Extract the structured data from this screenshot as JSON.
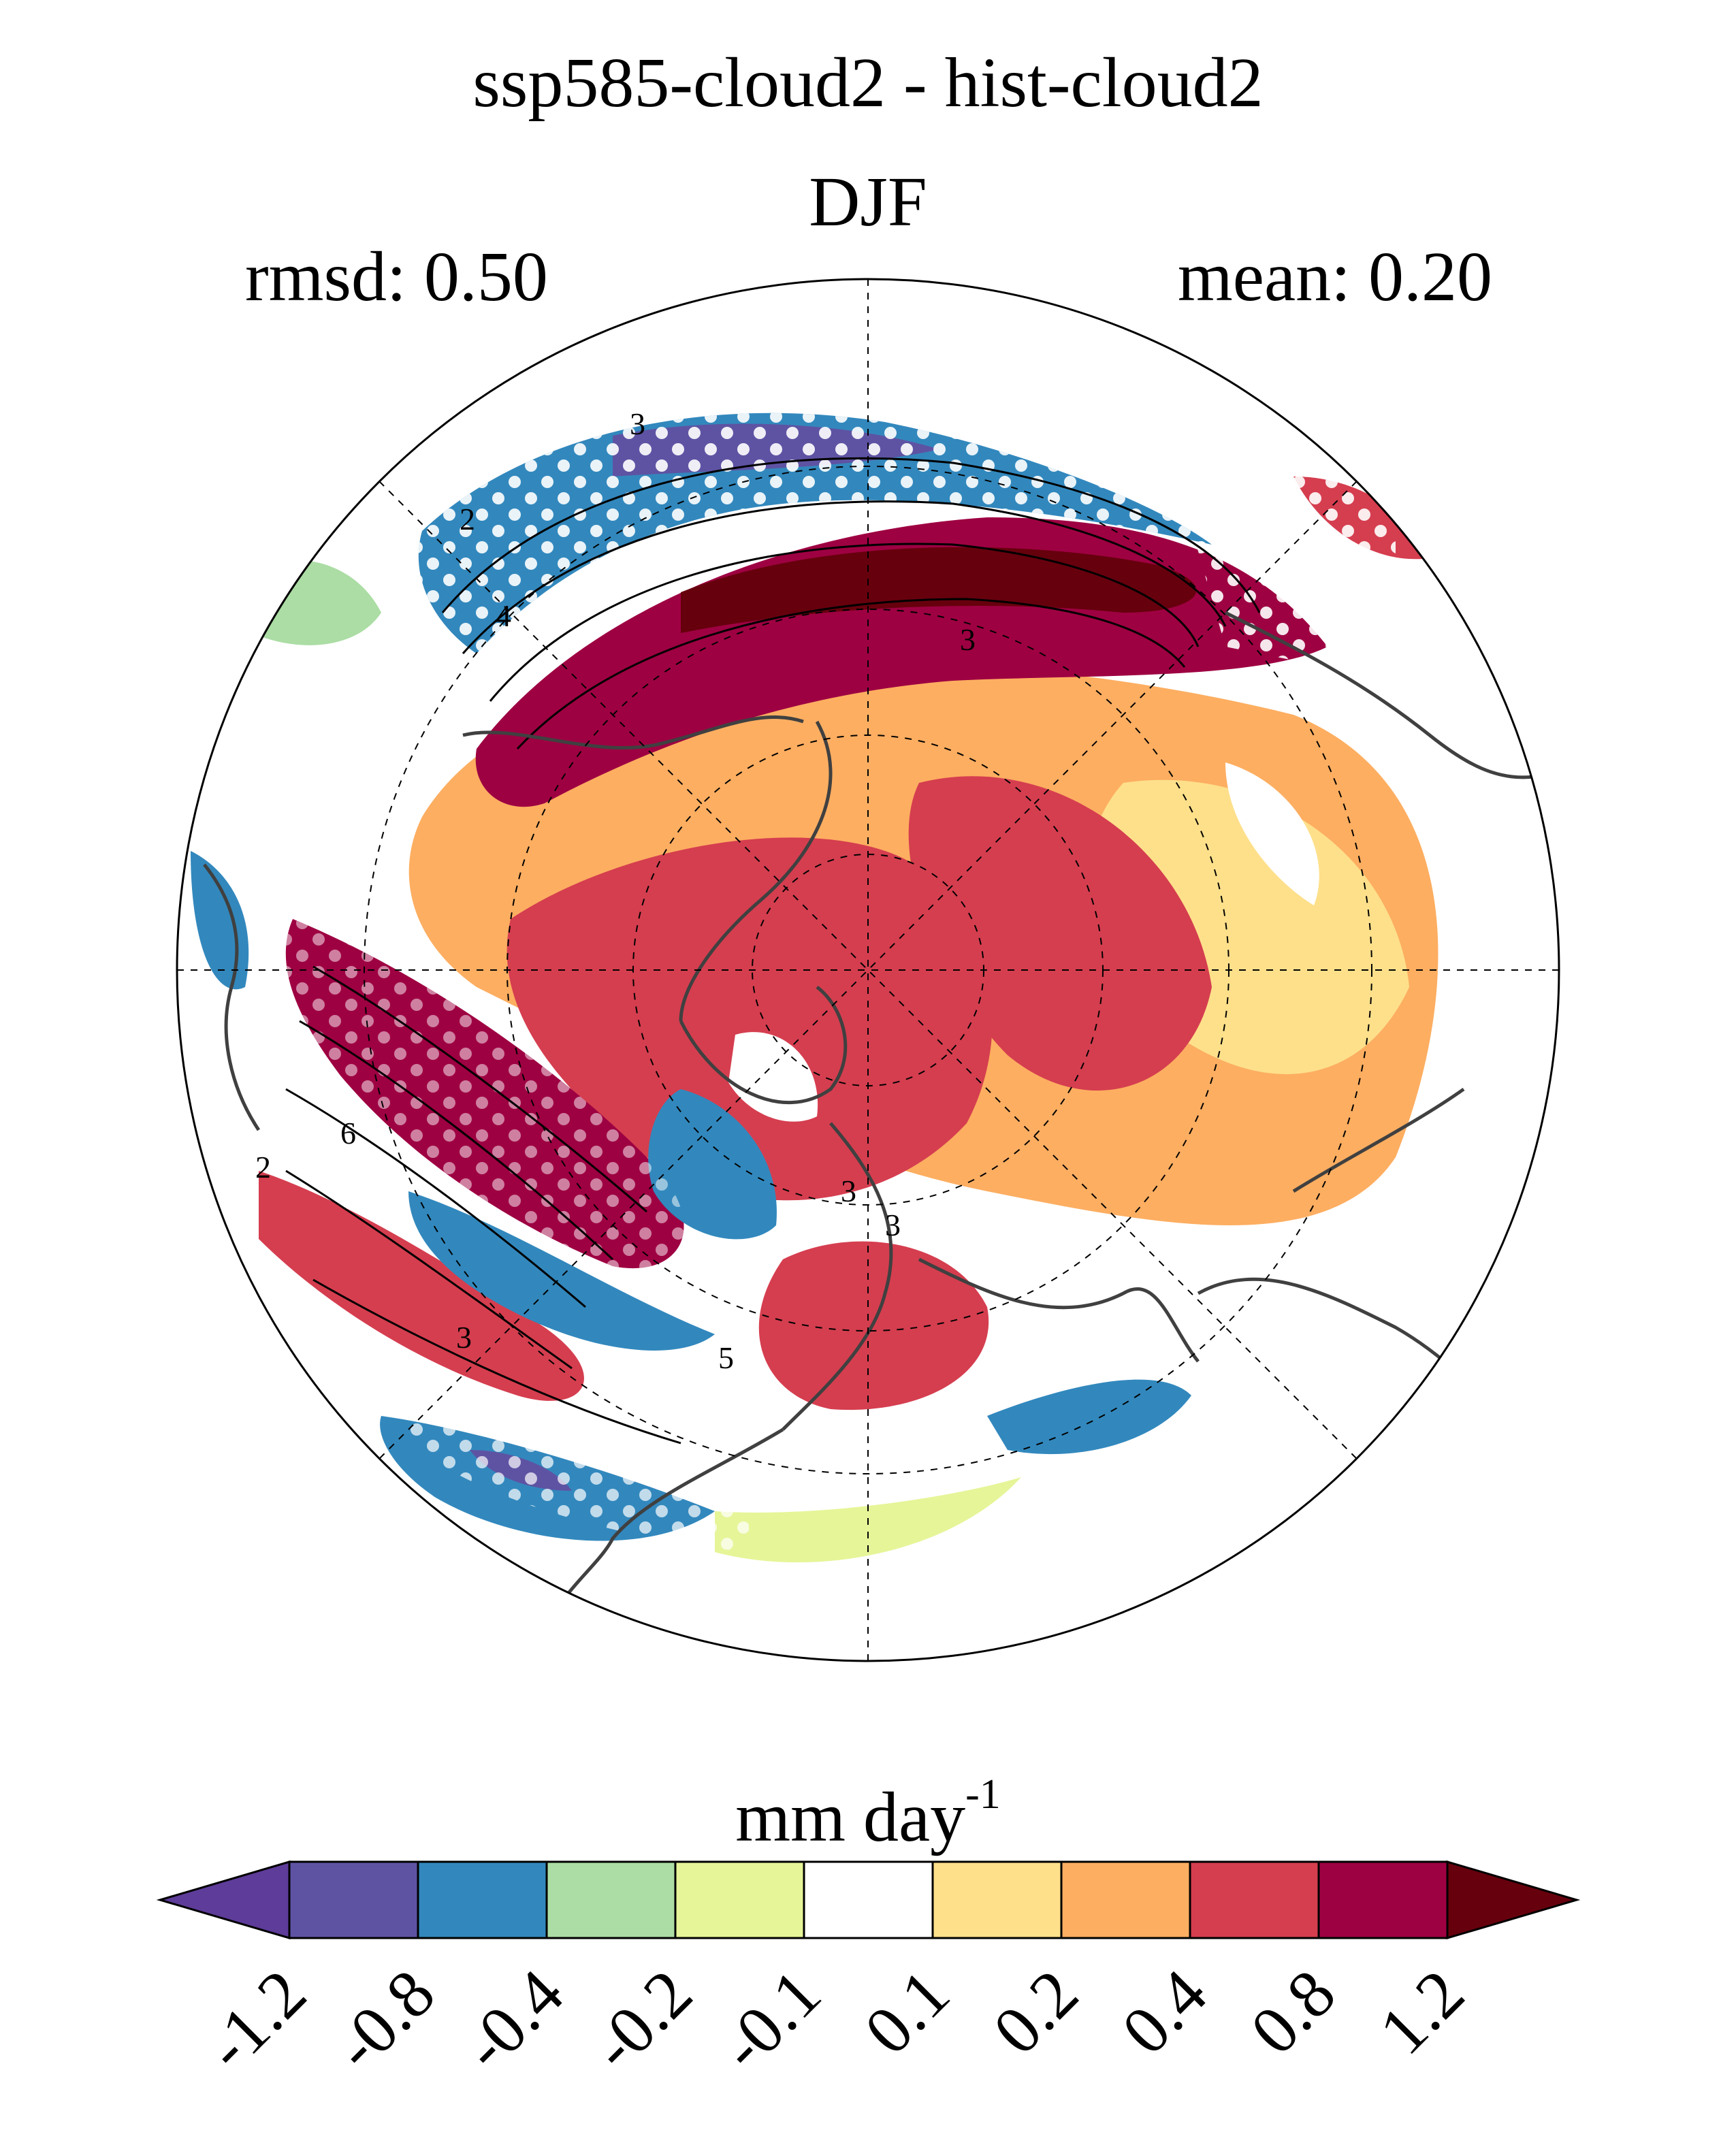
{
  "title": "ssp585-cloud2 - hist-cloud2",
  "season": "DJF",
  "stats": {
    "rmsd": "rmsd: 0.50",
    "mean": "mean: 0.20"
  },
  "units": {
    "base": "mm day",
    "exponent": "-1"
  },
  "colorbar": {
    "levels": [
      "-1.2",
      "-0.8",
      "-0.4",
      "-0.2",
      "-0.1",
      "0.1",
      "0.2",
      "0.4",
      "0.8",
      "1.2"
    ],
    "colors": [
      "#5e3c99",
      "#5e53a3",
      "#3288bd",
      "#abdda4",
      "#e6f598",
      "#ffffff",
      "#fee08b",
      "#fdae61",
      "#d53e4f",
      "#9e0142",
      "#67000d"
    ],
    "extend": "both"
  },
  "contour_labels": [
    "3",
    "2",
    "4",
    "3",
    "6",
    "2",
    "3",
    "5",
    "3",
    "3"
  ],
  "map": {
    "projection": "north-polar-stereographic",
    "stippling": "white dots mark significance"
  }
}
